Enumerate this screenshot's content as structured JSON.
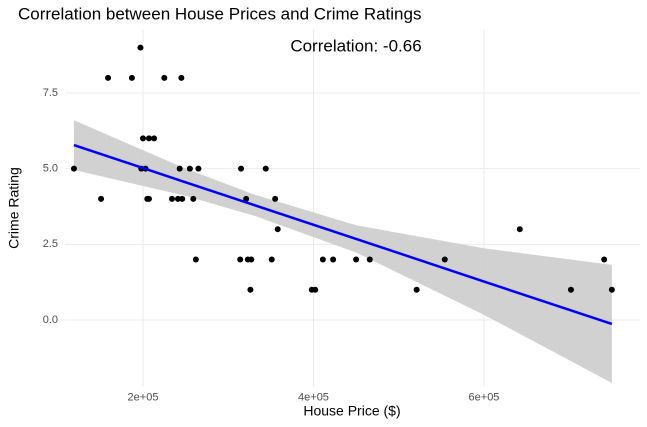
{
  "chart_data": {
    "type": "scatter",
    "title": "Correlation between House Prices and Crime Ratings",
    "annotation": "Correlation:  -0.66",
    "x_label": "House Price ($)",
    "y_label": "Crime Rating",
    "color": "#000000",
    "x": [
      119000,
      150800,
      159000,
      187000,
      197000,
      198000,
      200000,
      203000,
      205000,
      207000,
      207000,
      213000,
      225000,
      234000,
      241000,
      243000,
      245000,
      246000,
      255000,
      259000,
      262000,
      265000,
      314000,
      315000,
      321000,
      323000,
      326000,
      327000,
      344000,
      351000,
      355000,
      358000,
      398000,
      402000,
      411000,
      423000,
      450000,
      466000,
      521000,
      554000,
      642000,
      702000,
      741000,
      750000
    ],
    "values": [
      5,
      4,
      8,
      8,
      9,
      5,
      6,
      5,
      4,
      4,
      6,
      6,
      8,
      4,
      4,
      5,
      8,
      4,
      5,
      4,
      2,
      5,
      2,
      5,
      4,
      2,
      1,
      2,
      5,
      2,
      4,
      3,
      1,
      1,
      2,
      2,
      2,
      2,
      1,
      2,
      3,
      1,
      2,
      1
    ],
    "fit": {
      "color": "#0000ff",
      "band_color": "#cccccc",
      "x": [
        119000,
        250000,
        330000,
        450000,
        600000,
        750000
      ],
      "values": [
        5.78,
        4.55,
        3.8,
        2.68,
        1.27,
        -0.13
      ],
      "lower": [
        4.96,
        4.1,
        3.45,
        2.23,
        0.17,
        -2.08
      ],
      "upper": [
        6.6,
        5.0,
        4.15,
        3.13,
        2.37,
        1.82
      ]
    },
    "xlim": [
      108500,
      783000
    ],
    "ylim": [
      -2.2,
      9.6
    ],
    "xticks": [
      {
        "value": 200000,
        "label": "2e+05"
      },
      {
        "value": 400000,
        "label": "4e+05"
      },
      {
        "value": 600000,
        "label": "6e+05"
      }
    ],
    "yticks": [
      {
        "value": 0,
        "label": "0.0"
      },
      2.5,
      {
        "value": 5,
        "label": "5.0"
      },
      7.5
    ],
    "grid": true
  }
}
